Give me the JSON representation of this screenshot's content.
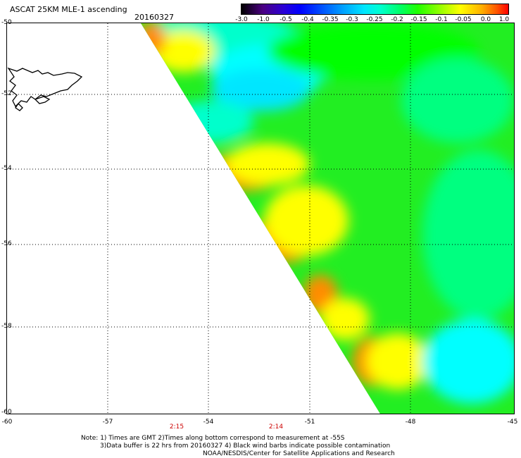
{
  "header": {
    "title": "ASCAT 25KM MLE-1 ascending",
    "date": "20160327"
  },
  "colorbar": {
    "labels": [
      "-3.0",
      "-1.0",
      "-0.5",
      "-0.4",
      "-0.35",
      "-0.3",
      "-0.25",
      "-0.2",
      "-0.15",
      "-0.1",
      "-0.05",
      "0.0",
      "1.0"
    ]
  },
  "axes": {
    "lat_labels": [
      "-50",
      "-52",
      "-54",
      "-56",
      "-58",
      "-60"
    ],
    "lon_labels": [
      "-60",
      "-57",
      "-54",
      "-51",
      "-48",
      "-45"
    ],
    "time_labels": [
      "2:15",
      "2:14"
    ]
  },
  "notes": {
    "line1": "Note: 1) Times are GMT 2)Times along bottom correspond to measurement at -55S",
    "line2": "3)Data buffer is 22 hrs from 20160327 4) Black wind barbs indicate possible contamination",
    "line3": "NOAA/NESDIS/Center for Satellite Applications and Research"
  },
  "colors": {
    "orange": "#ff8c00",
    "yellow": "#ffff00",
    "yellow_green": "#aaff00",
    "green": "#00ff00",
    "spring_green": "#00ff80",
    "cyan_green": "#00ffcc",
    "cyan": "#00ffff",
    "light_blue": "#00e6ff"
  }
}
